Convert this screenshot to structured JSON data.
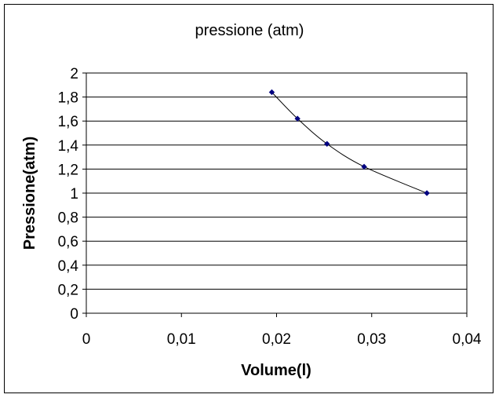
{
  "chart_data": {
    "type": "scatter",
    "title": "pressione (atm)",
    "xlabel": "Volume(l)",
    "ylabel": "Pressione(atm)",
    "xlim": [
      0,
      0.04
    ],
    "ylim": [
      0,
      2
    ],
    "x_ticks": [
      0,
      0.01,
      0.02,
      0.03,
      0.04
    ],
    "x_tick_labels": [
      "0",
      "0,01",
      "0,02",
      "0,03",
      "0,04"
    ],
    "y_ticks": [
      0,
      0.2,
      0.4,
      0.6,
      0.8,
      1,
      1.2,
      1.4,
      1.6,
      1.8,
      2
    ],
    "y_tick_labels": [
      "0",
      "0,2",
      "0,4",
      "0,6",
      "0,8",
      "1",
      "1,2",
      "1,4",
      "1,6",
      "1,8",
      "2"
    ],
    "grid": "horizontal",
    "legend": "none",
    "series": [
      {
        "x": [
          0.0195,
          0.0222,
          0.0253,
          0.0292,
          0.0358
        ],
        "y": [
          1.84,
          1.62,
          1.41,
          1.22,
          1.0
        ],
        "line": "smooth",
        "color": "#000080"
      }
    ]
  }
}
